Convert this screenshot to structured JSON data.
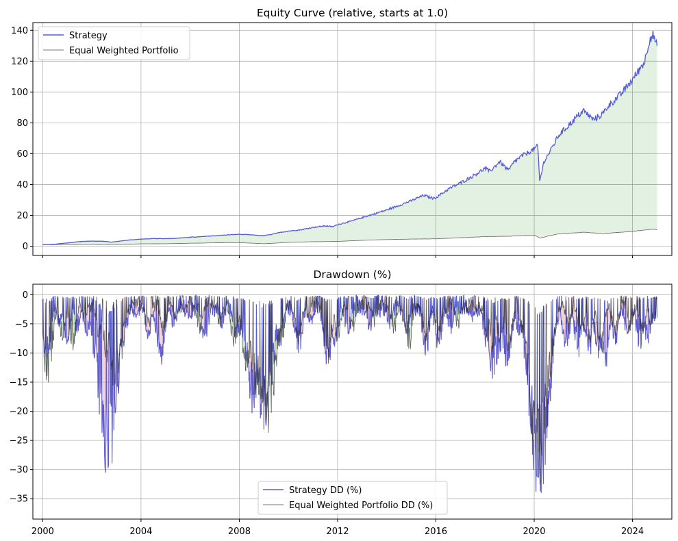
{
  "chart_data": [
    {
      "type": "line",
      "title": "Equity Curve (relative, starts at 1.0)",
      "xlabel": "",
      "ylabel": "",
      "xlim": [
        1999.6,
        2025.6
      ],
      "ylim": [
        -6,
        145
      ],
      "yticks": [
        0,
        20,
        40,
        60,
        80,
        100,
        120,
        140
      ],
      "grid": true,
      "legend_position": "top-left",
      "fill_between": {
        "color": "#008000",
        "opacity": 0.11
      },
      "series": [
        {
          "name": "Strategy",
          "color": "#3a3fcc",
          "points": [
            [
              2000.0,
              1.0
            ],
            [
              2000.5,
              1.3
            ],
            [
              2001.0,
              2.1
            ],
            [
              2001.5,
              3.0
            ],
            [
              2002.0,
              3.3
            ],
            [
              2002.5,
              3.2
            ],
            [
              2002.8,
              2.6
            ],
            [
              2003.0,
              3.0
            ],
            [
              2003.5,
              4.0
            ],
            [
              2004.0,
              4.6
            ],
            [
              2004.5,
              4.9
            ],
            [
              2005.0,
              4.9
            ],
            [
              2005.5,
              5.2
            ],
            [
              2006.0,
              5.8
            ],
            [
              2006.5,
              6.2
            ],
            [
              2007.0,
              6.8
            ],
            [
              2007.5,
              7.3
            ],
            [
              2008.0,
              7.7
            ],
            [
              2008.5,
              7.3
            ],
            [
              2009.0,
              6.8
            ],
            [
              2009.3,
              7.6
            ],
            [
              2009.7,
              9.0
            ],
            [
              2010.0,
              9.8
            ],
            [
              2010.5,
              10.6
            ],
            [
              2011.0,
              12.2
            ],
            [
              2011.5,
              13.2
            ],
            [
              2011.8,
              12.6
            ],
            [
              2012.0,
              14.0
            ],
            [
              2012.5,
              16.0
            ],
            [
              2013.0,
              18.5
            ],
            [
              2013.5,
              21.0
            ],
            [
              2014.0,
              23.5
            ],
            [
              2014.5,
              26.5
            ],
            [
              2015.0,
              29.5
            ],
            [
              2015.5,
              33.0
            ],
            [
              2015.9,
              31.0
            ],
            [
              2016.1,
              32.5
            ],
            [
              2016.5,
              37.0
            ],
            [
              2017.0,
              41.0
            ],
            [
              2017.5,
              45.5
            ],
            [
              2018.0,
              50.5
            ],
            [
              2018.2,
              48.5
            ],
            [
              2018.6,
              55.0
            ],
            [
              2018.95,
              49.0
            ],
            [
              2019.2,
              55.0
            ],
            [
              2019.5,
              58.5
            ],
            [
              2020.0,
              63.0
            ],
            [
              2020.15,
              65.0
            ],
            [
              2020.22,
              42.0
            ],
            [
              2020.4,
              55.0
            ],
            [
              2020.7,
              63.0
            ],
            [
              2021.0,
              72.0
            ],
            [
              2021.5,
              80.0
            ],
            [
              2022.0,
              88.0
            ],
            [
              2022.4,
              82.0
            ],
            [
              2022.8,
              86.0
            ],
            [
              2023.0,
              91.0
            ],
            [
              2023.5,
              98.0
            ],
            [
              2024.0,
              108.0
            ],
            [
              2024.5,
              120.0
            ],
            [
              2024.7,
              135.0
            ],
            [
              2024.85,
              137.0
            ],
            [
              2025.0,
              129.0
            ]
          ]
        },
        {
          "name": "Equal Weighted Portfolio",
          "color": "#555555",
          "points": [
            [
              2000.0,
              1.0
            ],
            [
              2001.0,
              1.1
            ],
            [
              2002.0,
              1.15
            ],
            [
              2002.8,
              1.0
            ],
            [
              2003.5,
              1.3
            ],
            [
              2004.0,
              1.5
            ],
            [
              2005.0,
              1.6
            ],
            [
              2006.0,
              1.9
            ],
            [
              2007.0,
              2.2
            ],
            [
              2008.0,
              2.3
            ],
            [
              2009.0,
              1.6
            ],
            [
              2009.5,
              2.0
            ],
            [
              2010.0,
              2.5
            ],
            [
              2011.0,
              2.9
            ],
            [
              2012.0,
              3.1
            ],
            [
              2013.0,
              3.8
            ],
            [
              2014.0,
              4.3
            ],
            [
              2015.0,
              4.6
            ],
            [
              2016.0,
              4.8
            ],
            [
              2017.0,
              5.5
            ],
            [
              2018.0,
              6.2
            ],
            [
              2019.0,
              6.5
            ],
            [
              2020.0,
              7.2
            ],
            [
              2020.25,
              5.2
            ],
            [
              2020.6,
              6.8
            ],
            [
              2021.0,
              8.0
            ],
            [
              2022.0,
              9.0
            ],
            [
              2022.8,
              8.2
            ],
            [
              2023.5,
              9.0
            ],
            [
              2024.0,
              9.6
            ],
            [
              2024.5,
              10.5
            ],
            [
              2024.85,
              11.0
            ],
            [
              2025.0,
              10.6
            ]
          ]
        }
      ]
    },
    {
      "type": "line",
      "title": "Drawdown (%)",
      "xlabel": "",
      "ylabel": "",
      "xlim": [
        1999.6,
        2025.6
      ],
      "ylim": [
        -38.5,
        1.8
      ],
      "yticks": [
        0,
        -5,
        -10,
        -15,
        -20,
        -25,
        -30,
        -35
      ],
      "xticks": [
        2000,
        2004,
        2008,
        2012,
        2016,
        2020,
        2024
      ],
      "grid": true,
      "legend_position": "bottom-center",
      "series": [
        {
          "name": "Strategy DD (%)",
          "color": "#3a3fcc",
          "dips": [
            [
              2000.05,
              -8
            ],
            [
              2000.15,
              -12
            ],
            [
              2000.35,
              -5
            ],
            [
              2000.7,
              -6
            ],
            [
              2001.0,
              -9
            ],
            [
              2001.4,
              -7
            ],
            [
              2001.8,
              -8
            ],
            [
              2002.2,
              -14
            ],
            [
              2002.4,
              -20
            ],
            [
              2002.55,
              -27
            ],
            [
              2002.65,
              -33
            ],
            [
              2002.9,
              -22
            ],
            [
              2003.1,
              -15
            ],
            [
              2003.4,
              -6
            ],
            [
              2003.8,
              -4
            ],
            [
              2004.3,
              -8
            ],
            [
              2004.8,
              -12.5
            ],
            [
              2005.3,
              -6
            ],
            [
              2006.0,
              -5
            ],
            [
              2006.6,
              -9
            ],
            [
              2007.3,
              -6
            ],
            [
              2007.9,
              -9
            ],
            [
              2008.3,
              -14
            ],
            [
              2008.55,
              -21
            ],
            [
              2008.85,
              -22
            ],
            [
              2009.0,
              -24
            ],
            [
              2009.2,
              -18
            ],
            [
              2009.6,
              -10
            ],
            [
              2010.4,
              -11
            ],
            [
              2010.9,
              -6
            ],
            [
              2011.6,
              -13
            ],
            [
              2011.9,
              -10
            ],
            [
              2012.4,
              -8
            ],
            [
              2013.3,
              -7
            ],
            [
              2014.1,
              -6
            ],
            [
              2014.8,
              -8
            ],
            [
              2015.6,
              -11
            ],
            [
              2016.1,
              -10
            ],
            [
              2016.6,
              -7
            ],
            [
              2017.5,
              -5
            ],
            [
              2018.1,
              -11
            ],
            [
              2018.3,
              -15
            ],
            [
              2018.5,
              -13
            ],
            [
              2018.9,
              -14
            ],
            [
              2019.4,
              -8
            ],
            [
              2019.8,
              -6
            ],
            [
              2020.1,
              -10
            ],
            [
              2020.2,
              -36.5
            ],
            [
              2020.35,
              -20
            ],
            [
              2020.6,
              -12
            ],
            [
              2020.8,
              -8
            ],
            [
              2021.3,
              -10
            ],
            [
              2021.8,
              -11
            ],
            [
              2022.2,
              -12
            ],
            [
              2022.6,
              -11
            ],
            [
              2022.9,
              -13
            ],
            [
              2023.3,
              -9
            ],
            [
              2023.8,
              -8
            ],
            [
              2024.3,
              -10
            ],
            [
              2024.6,
              -9
            ],
            [
              2024.9,
              -7
            ],
            [
              2025.0,
              -7
            ]
          ]
        },
        {
          "name": "Equal Weighted Portfolio DD (%)",
          "color": "#2a2a2a",
          "dips": [
            [
              2000.05,
              -6
            ],
            [
              2000.2,
              -15.5
            ],
            [
              2000.4,
              -4
            ],
            [
              2000.8,
              -8
            ],
            [
              2001.2,
              -10
            ],
            [
              2001.7,
              -5
            ],
            [
              2002.3,
              -8
            ],
            [
              2002.6,
              -12
            ],
            [
              2002.9,
              -16
            ],
            [
              2003.1,
              -14
            ],
            [
              2003.4,
              -5
            ],
            [
              2004.3,
              -7
            ],
            [
              2004.9,
              -8
            ],
            [
              2005.4,
              -5
            ],
            [
              2006.4,
              -7
            ],
            [
              2007.2,
              -6
            ],
            [
              2007.8,
              -10
            ],
            [
              2008.3,
              -15
            ],
            [
              2008.7,
              -18
            ],
            [
              2008.95,
              -21
            ],
            [
              2009.15,
              -25.5
            ],
            [
              2009.35,
              -17
            ],
            [
              2009.7,
              -9
            ],
            [
              2010.4,
              -9
            ],
            [
              2010.8,
              -5
            ],
            [
              2011.6,
              -12
            ],
            [
              2012.0,
              -8
            ],
            [
              2012.6,
              -7
            ],
            [
              2013.5,
              -6
            ],
            [
              2014.3,
              -7
            ],
            [
              2014.9,
              -10
            ],
            [
              2015.6,
              -9
            ],
            [
              2016.1,
              -8
            ],
            [
              2016.9,
              -6
            ],
            [
              2017.8,
              -4
            ],
            [
              2018.1,
              -8
            ],
            [
              2018.3,
              -10
            ],
            [
              2018.6,
              -9
            ],
            [
              2018.95,
              -11
            ],
            [
              2019.5,
              -7
            ],
            [
              2020.0,
              -6
            ],
            [
              2020.2,
              -34
            ],
            [
              2020.4,
              -14
            ],
            [
              2020.7,
              -8
            ],
            [
              2021.4,
              -7
            ],
            [
              2021.9,
              -8
            ],
            [
              2022.3,
              -9
            ],
            [
              2022.7,
              -10
            ],
            [
              2023.3,
              -8
            ],
            [
              2023.9,
              -7
            ],
            [
              2024.4,
              -8
            ],
            [
              2024.8,
              -7
            ],
            [
              2025.0,
              -6
            ]
          ]
        }
      ]
    }
  ]
}
